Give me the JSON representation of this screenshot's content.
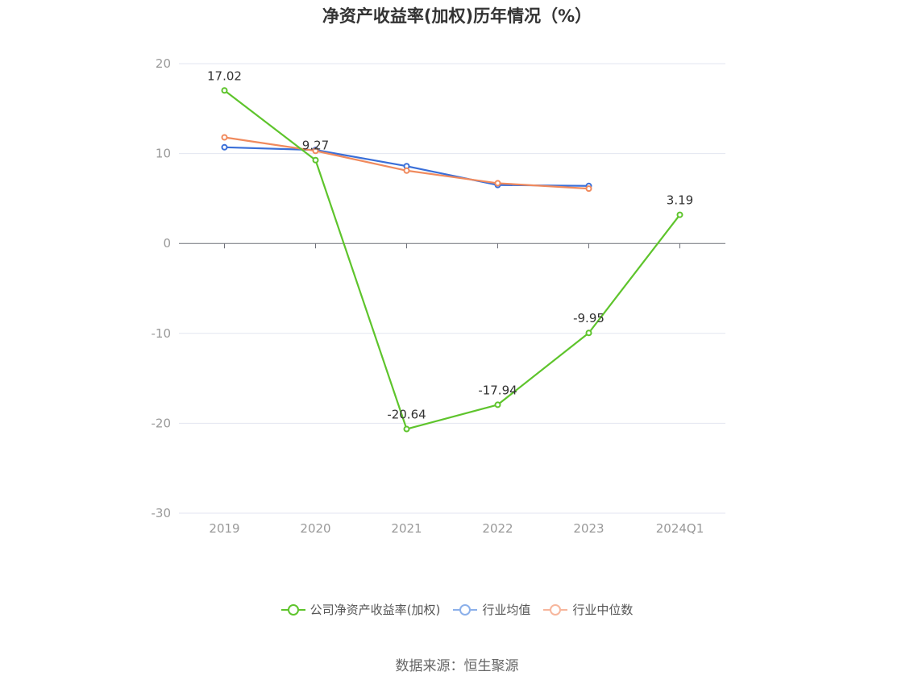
{
  "chart_data": {
    "type": "line",
    "title": "净资产收益率(加权)历年情况（%）",
    "categories": [
      "2019",
      "2020",
      "2021",
      "2022",
      "2023",
      "2024Q1"
    ],
    "ylim": [
      -30,
      20
    ],
    "yticks": [
      20,
      10,
      0,
      -10,
      -20,
      -30
    ],
    "grid": true,
    "legend_position": "bottom",
    "series": [
      {
        "name": "公司净资产收益率(加权)",
        "color": "#5ec42c",
        "values": [
          17.02,
          9.27,
          -20.64,
          -17.94,
          -9.95,
          3.19
        ],
        "labels": [
          "17.02",
          "9.27",
          "-20.64",
          "-17.94",
          "-9.95",
          "3.19"
        ]
      },
      {
        "name": "行业均值",
        "color": "#3a6fd8",
        "values": [
          10.7,
          10.4,
          8.6,
          6.5,
          6.4,
          null
        ]
      },
      {
        "name": "行业中位数",
        "color": "#f08a5d",
        "values": [
          11.8,
          10.3,
          8.1,
          6.7,
          6.1,
          null
        ]
      }
    ]
  },
  "legend": {
    "items": [
      {
        "label": "公司净资产收益率(加权)",
        "color": "#5ec42c"
      },
      {
        "label": "行业均值",
        "color": "#8cb0ea"
      },
      {
        "label": "行业中位数",
        "color": "#f7b69c"
      }
    ]
  },
  "source": "数据来源：恒生聚源"
}
